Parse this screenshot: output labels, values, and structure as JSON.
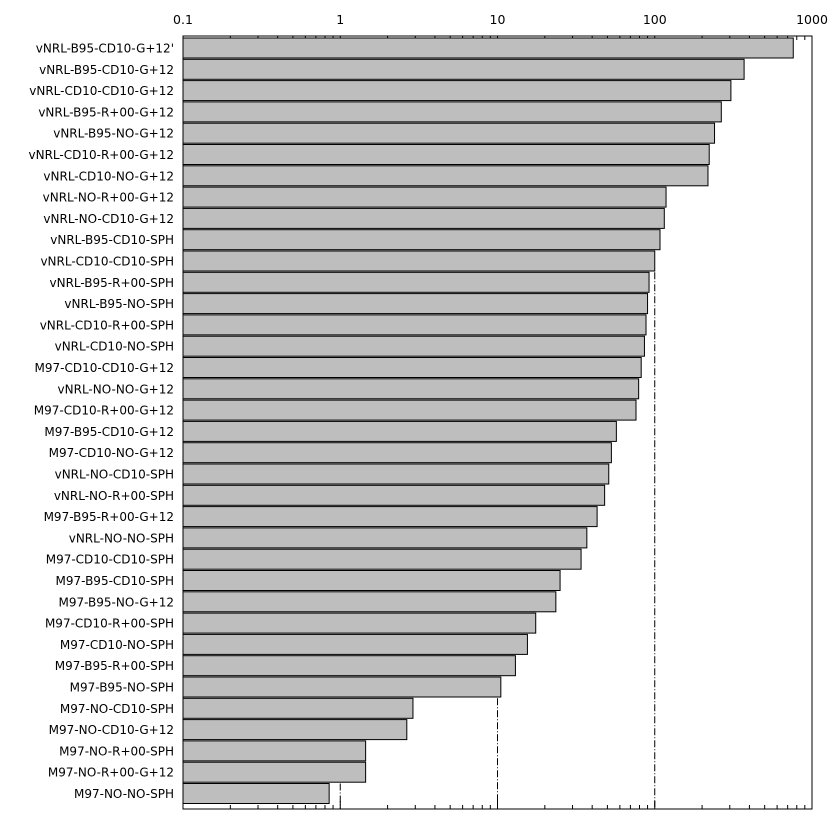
{
  "chart_data": {
    "type": "bar",
    "orientation": "horizontal",
    "x_scale": "log",
    "xlim": [
      0.1,
      1000
    ],
    "x_ticks": [
      "0.1",
      "1",
      "10",
      "100",
      "1000"
    ],
    "x_tick_values": [
      0.1,
      1,
      10,
      100,
      1000
    ],
    "reference_lines": [
      1,
      10,
      100
    ],
    "grid": false,
    "legend": "none",
    "bar_color": "#bebebe",
    "categories": [
      "vNRL-B95-CD10-G+12'",
      "vNRL-B95-CD10-G+12",
      "vNRL-CD10-CD10-G+12",
      "vNRL-B95-R+00-G+12",
      "vNRL-B95-NO-G+12",
      "vNRL-CD10-R+00-G+12",
      "vNRL-CD10-NO-G+12",
      "vNRL-NO-R+00-G+12",
      "vNRL-NO-CD10-G+12",
      "vNRL-B95-CD10-SPH",
      "vNRL-CD10-CD10-SPH",
      "vNRL-B95-R+00-SPH",
      "vNRL-B95-NO-SPH",
      "vNRL-CD10-R+00-SPH",
      "vNRL-CD10-NO-SPH",
      "M97-CD10-CD10-G+12",
      "vNRL-NO-NO-G+12",
      "M97-CD10-R+00-G+12",
      "M97-B95-CD10-G+12",
      "M97-CD10-NO-G+12",
      "vNRL-NO-CD10-SPH",
      "vNRL-NO-R+00-SPH",
      "M97-B95-R+00-G+12",
      "vNRL-NO-NO-SPH",
      "M97-CD10-CD10-SPH",
      "M97-B95-CD10-SPH",
      "M97-B95-NO-G+12",
      "M97-CD10-R+00-SPH",
      "M97-CD10-NO-SPH",
      "M97-B95-R+00-SPH",
      "M97-B95-NO-SPH",
      "M97-NO-CD10-SPH",
      "M97-NO-CD10-G+12",
      "M97-NO-R+00-SPH",
      "M97-NO-R+00-G+12",
      "M97-NO-NO-SPH"
    ],
    "values": [
      760,
      370,
      305,
      265,
      240,
      222,
      218,
      118,
      115,
      108,
      100,
      92,
      90,
      88,
      86,
      82,
      79,
      76,
      57,
      53,
      51,
      48,
      43,
      37,
      34,
      25,
      23.5,
      17.5,
      15.5,
      13,
      10.5,
      2.9,
      2.65,
      1.45,
      1.45,
      0.85
    ]
  }
}
